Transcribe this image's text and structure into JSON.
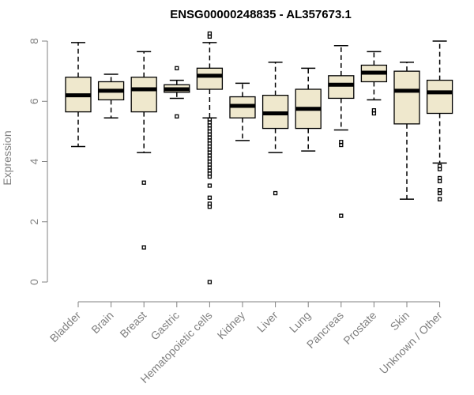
{
  "colors": {
    "box_fill": "#efe8cd",
    "axis": "#808080"
  },
  "chart_data": {
    "type": "boxplot",
    "title": "ENSG00000248835 - AL357673.1",
    "xlabel": "",
    "ylabel": "Expression",
    "ylim": [
      0,
      8
    ],
    "yticks": [
      0,
      2,
      4,
      6,
      8
    ],
    "grid": false,
    "legend": "none",
    "categories": [
      "Bladder",
      "Brain",
      "Breast",
      "Gastric",
      "Hematopoietic cells",
      "Kidney",
      "Liver",
      "Lung",
      "Pancreas",
      "Prostate",
      "Skin",
      "Unknown / Other"
    ],
    "boxes": [
      {
        "category": "Bladder",
        "whisker_low": 4.5,
        "q1": 5.65,
        "median": 6.2,
        "q3": 6.8,
        "whisker_high": 7.95,
        "outliers": []
      },
      {
        "category": "Brain",
        "whisker_low": 5.45,
        "q1": 6.05,
        "median": 6.35,
        "q3": 6.65,
        "whisker_high": 6.9,
        "outliers": []
      },
      {
        "category": "Breast",
        "whisker_low": 4.3,
        "q1": 5.65,
        "median": 6.4,
        "q3": 6.8,
        "whisker_high": 7.65,
        "outliers": [
          3.3,
          1.15
        ]
      },
      {
        "category": "Gastric",
        "whisker_low": 6.1,
        "q1": 6.3,
        "median": 6.4,
        "q3": 6.55,
        "whisker_high": 6.7,
        "outliers": [
          7.1,
          5.5
        ]
      },
      {
        "category": "Hematopoietic cells",
        "whisker_low": 5.45,
        "q1": 6.4,
        "median": 6.85,
        "q3": 7.1,
        "whisker_high": 7.95,
        "outliers": [
          8.25,
          8.15,
          5.4,
          5.3,
          5.2,
          5.1,
          5.0,
          4.9,
          4.8,
          4.7,
          4.6,
          4.5,
          4.4,
          4.3,
          4.2,
          4.1,
          4.0,
          3.9,
          3.8,
          3.7,
          3.6,
          3.5,
          3.2,
          2.8,
          2.6,
          2.5,
          0.0
        ]
      },
      {
        "category": "Kidney",
        "whisker_low": 4.7,
        "q1": 5.45,
        "median": 5.85,
        "q3": 6.15,
        "whisker_high": 6.6,
        "outliers": []
      },
      {
        "category": "Liver",
        "whisker_low": 4.3,
        "q1": 5.1,
        "median": 5.6,
        "q3": 6.2,
        "whisker_high": 7.3,
        "outliers": [
          2.95
        ]
      },
      {
        "category": "Lung",
        "whisker_low": 4.35,
        "q1": 5.1,
        "median": 5.75,
        "q3": 6.4,
        "whisker_high": 7.1,
        "outliers": []
      },
      {
        "category": "Pancreas",
        "whisker_low": 5.05,
        "q1": 6.1,
        "median": 6.55,
        "q3": 6.85,
        "whisker_high": 7.85,
        "outliers": [
          4.65,
          4.55,
          2.2
        ]
      },
      {
        "category": "Prostate",
        "whisker_low": 6.05,
        "q1": 6.65,
        "median": 6.95,
        "q3": 7.2,
        "whisker_high": 7.65,
        "outliers": [
          5.7,
          5.6
        ]
      },
      {
        "category": "Skin",
        "whisker_low": 2.75,
        "q1": 5.25,
        "median": 6.35,
        "q3": 7.0,
        "whisker_high": 7.3,
        "outliers": []
      },
      {
        "category": "Unknown / Other",
        "whisker_low": 3.95,
        "q1": 5.6,
        "median": 6.3,
        "q3": 6.7,
        "whisker_high": 8.0,
        "outliers": [
          3.85,
          3.75,
          3.45,
          3.35,
          3.05,
          2.95,
          2.75
        ]
      }
    ]
  }
}
